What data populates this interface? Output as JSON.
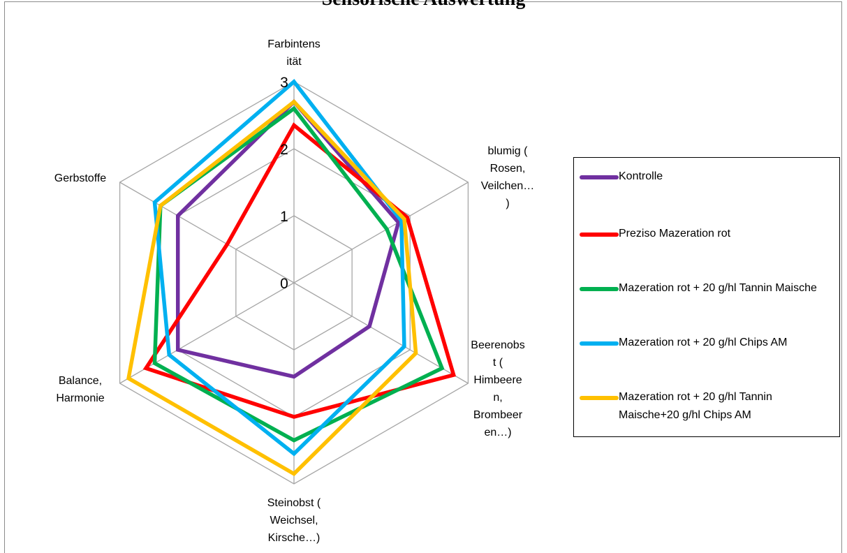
{
  "chart_data": {
    "type": "radar",
    "title": "Sensorische Auswertung",
    "axes": [
      [
        "Farbintens",
        "ität"
      ],
      [
        "blumig (",
        "Rosen,",
        "Veilchen…",
        ")"
      ],
      [
        "Beerenobs",
        "t (",
        "Himbeere",
        "n,",
        "Brombeer",
        "en…)"
      ],
      [
        "Steinobst (",
        "Weichsel,",
        "Kirsche…)"
      ],
      [
        "Balance,",
        "Harmonie"
      ],
      [
        "Gerbstoffe"
      ]
    ],
    "scale": {
      "min": 0,
      "max": 3,
      "ticks": [
        "0",
        "1",
        "2",
        "3"
      ]
    },
    "series": [
      {
        "name": "Kontrolle",
        "color": "#7030A0",
        "values": [
          2.7,
          1.8,
          1.3,
          1.4,
          2.0,
          2.0
        ]
      },
      {
        "name": "Preziso Mazeration rot",
        "color": "#FF0000",
        "values": [
          2.35,
          1.95,
          2.75,
          2.0,
          2.55,
          1.15
        ]
      },
      {
        "name": "Mazeration rot + 20 g/hl Tannin Maische",
        "color": "#00B050",
        "values": [
          2.6,
          1.6,
          2.55,
          2.35,
          2.4,
          2.3
        ]
      },
      {
        "name": "Mazeration rot + 20 g/hl Chips AM",
        "color": "#00B0F0",
        "values": [
          3.0,
          1.85,
          1.9,
          2.55,
          2.15,
          2.4
        ]
      },
      {
        "name": "Mazeration rot + 20 g/hl Tannin Maische+20 g/hl Chips AM",
        "color": "#FFC000",
        "values": [
          2.7,
          1.9,
          2.1,
          2.85,
          2.85,
          2.3
        ]
      }
    ],
    "legend_position": "right"
  }
}
